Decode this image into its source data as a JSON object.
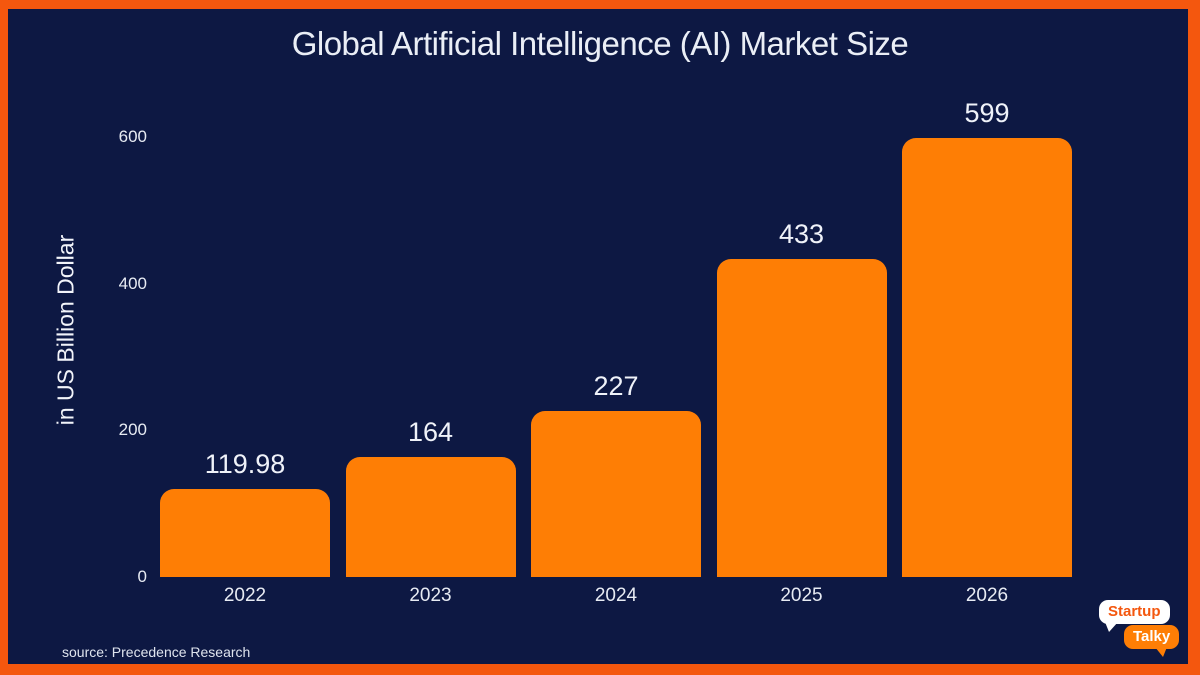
{
  "chart_data": {
    "type": "bar",
    "title": "Global Artificial Intelligence (AI) Market Size",
    "xlabel": "",
    "ylabel": "in US Billion Dollar",
    "categories": [
      "2022",
      "2023",
      "2024",
      "2025",
      "2026"
    ],
    "values": [
      119.98,
      164,
      227,
      433,
      599
    ],
    "value_labels": [
      "119.98",
      "164",
      "227",
      "433",
      "599"
    ],
    "yticks": [
      0,
      200,
      400,
      600
    ],
    "ylim": [
      0,
      600
    ],
    "grid": false,
    "legend": "none",
    "bar_color": "#fe7e05"
  },
  "footer": {
    "source": "source:  Precedence Research",
    "logo": {
      "line1": "Startup",
      "line2": "Talky"
    }
  },
  "colors": {
    "background": "#0d1843",
    "frame_border": "#f4570e",
    "bar_orange": "#fe7e05",
    "text_light": "#eaeef6"
  }
}
